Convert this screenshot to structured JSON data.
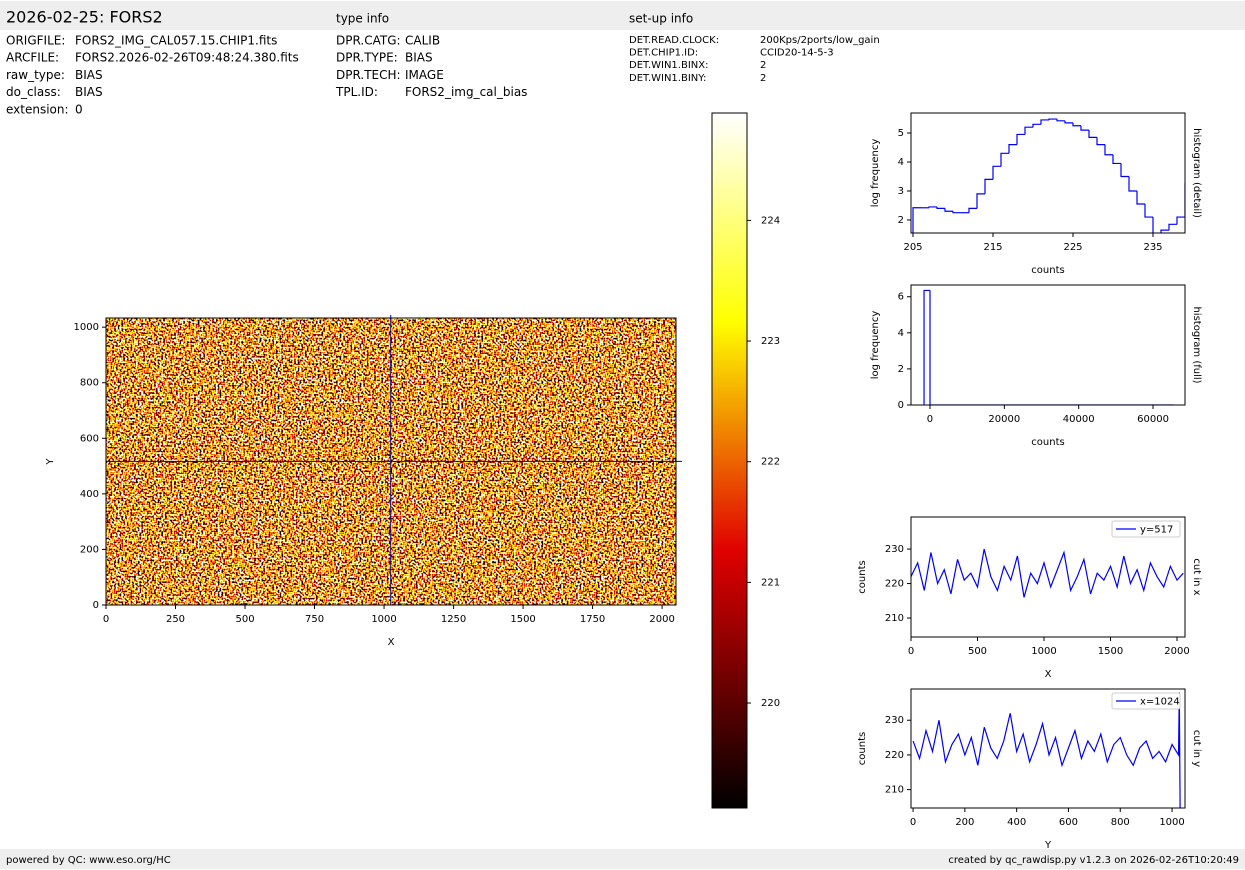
{
  "header": {
    "title": "2026-02-25: FORS2",
    "type_info": "type info",
    "setup_info": "set-up info"
  },
  "file_info": [
    [
      "ORIGFILE:",
      "FORS2_IMG_CAL057.15.CHIP1.fits"
    ],
    [
      "ARCFILE:",
      "FORS2.2026-02-26T09:48:24.380.fits"
    ],
    [
      "raw_type:",
      "BIAS"
    ],
    [
      "do_class:",
      "BIAS"
    ],
    [
      "extension:",
      "0"
    ]
  ],
  "type_info": [
    [
      "DPR.CATG:",
      "CALIB"
    ],
    [
      "DPR.TYPE:",
      "BIAS"
    ],
    [
      "DPR.TECH:",
      "IMAGE"
    ],
    [
      "TPL.ID:",
      "FORS2_img_cal_bias"
    ]
  ],
  "setup_info": [
    [
      "DET.READ.CLOCK:",
      "200Kps/2ports/low_gain"
    ],
    [
      "DET.CHIP1.ID:",
      "CCID20-14-5-3"
    ],
    [
      "DET.WIN1.BINX:",
      "2"
    ],
    [
      "DET.WIN1.BINY:",
      "2"
    ]
  ],
  "footer": {
    "left": "powered by QC: www.eso.org/HC",
    "right": "created by qc_rawdisp.py v1.2.3 on 2026-02-26T10:20:49"
  },
  "chart_data": [
    {
      "type": "image",
      "xlabel": "X",
      "ylabel": "Y",
      "xlim": [
        0,
        2050
      ],
      "ylim": [
        0,
        1033
      ],
      "xticks": [
        0,
        250,
        500,
        750,
        1000,
        1250,
        1500,
        1750,
        2000
      ],
      "yticks": [
        0,
        200,
        400,
        600,
        800,
        1000
      ],
      "crosshair": {
        "x": 1024,
        "y": 517
      },
      "crosshair_color": "#0000aa"
    },
    {
      "type": "colorbar",
      "clim": [
        219.13,
        224.89
      ],
      "ticks": [
        220,
        221,
        222,
        223,
        224
      ]
    },
    {
      "type": "histogram",
      "xlabel": "counts",
      "ylabel": "log frequency",
      "side_label": "histogram (detail)",
      "color": "#0000ff",
      "bins": [
        205,
        206,
        207,
        208,
        209,
        210,
        211,
        212,
        213,
        214,
        215,
        216,
        217,
        218,
        219,
        220,
        221,
        222,
        223,
        224,
        225,
        226,
        227,
        228,
        229,
        230,
        231,
        232,
        233,
        234,
        235,
        236,
        237,
        238,
        239,
        240
      ],
      "values": [
        2.42,
        2.42,
        2.45,
        2.4,
        2.3,
        2.25,
        2.25,
        2.4,
        2.9,
        3.4,
        3.85,
        4.3,
        4.6,
        4.95,
        5.2,
        5.3,
        5.45,
        5.48,
        5.42,
        5.35,
        5.25,
        5.1,
        4.85,
        4.6,
        4.25,
        3.95,
        3.5,
        3.0,
        2.55,
        2.1,
        1.5,
        1.65,
        1.85,
        2.1,
        3.25
      ],
      "xlim": [
        204.75,
        239.0
      ],
      "ylim": [
        1.55,
        5.69
      ],
      "xticks": [
        205,
        215,
        225,
        235
      ],
      "yticks": [
        2,
        3,
        4,
        5
      ]
    },
    {
      "type": "histogram",
      "xlabel": "counts",
      "ylabel": "log frequency",
      "side_label": "histogram (full)",
      "color": "#0000ff",
      "bins": [
        -1600,
        0,
        65536
      ],
      "values": [
        6.35,
        0
      ],
      "xlim": [
        -5110,
        68600
      ],
      "ylim": [
        0,
        6.65
      ],
      "xticks": [
        0,
        20000,
        40000,
        60000
      ],
      "yticks": [
        0,
        2,
        4,
        6
      ]
    },
    {
      "type": "line",
      "xlabel": "X",
      "ylabel": "counts",
      "side_label": "cut in x",
      "legend": "upper right",
      "xlim": [
        0,
        2060
      ],
      "ylim": [
        204.5,
        239.3
      ],
      "xticks": [
        0,
        500,
        1000,
        1500,
        2000
      ],
      "yticks": [
        210,
        220,
        230
      ],
      "series": [
        {
          "name": "y=517",
          "color": "#0000ff",
          "x": [
            0,
            50,
            100,
            150,
            200,
            250,
            300,
            350,
            400,
            450,
            500,
            550,
            600,
            650,
            700,
            750,
            800,
            850,
            900,
            950,
            1000,
            1050,
            1100,
            1150,
            1200,
            1250,
            1300,
            1350,
            1400,
            1450,
            1500,
            1550,
            1600,
            1650,
            1700,
            1750,
            1800,
            1850,
            1900,
            1950,
            2000,
            2047
          ],
          "values": [
            222,
            226,
            218,
            229,
            220,
            224,
            217,
            227,
            221,
            223,
            219,
            230,
            222,
            218,
            225,
            221,
            228,
            216,
            223,
            220,
            226,
            219,
            224,
            229,
            218,
            222,
            227,
            217,
            223,
            221,
            225,
            219,
            228,
            220,
            224,
            218,
            226,
            222,
            219,
            225,
            221,
            223
          ]
        }
      ]
    },
    {
      "type": "line",
      "xlabel": "Y",
      "ylabel": "counts",
      "side_label": "cut in y",
      "legend": "upper right",
      "xlim": [
        -8,
        1050
      ],
      "ylim": [
        204.7,
        239
      ],
      "xticks": [
        0,
        200,
        400,
        600,
        800,
        1000
      ],
      "yticks": [
        210,
        220,
        230
      ],
      "series": [
        {
          "name": "x=1024",
          "color": "#0000ff",
          "x": [
            0,
            25,
            50,
            75,
            100,
            125,
            150,
            175,
            200,
            225,
            250,
            275,
            300,
            325,
            350,
            375,
            400,
            425,
            450,
            475,
            500,
            525,
            550,
            575,
            600,
            625,
            650,
            675,
            700,
            725,
            750,
            775,
            800,
            825,
            850,
            875,
            900,
            925,
            950,
            975,
            1000,
            1025,
            1028,
            1032
          ],
          "values": [
            224,
            219,
            227,
            221,
            230,
            218,
            223,
            226,
            220,
            225,
            217,
            228,
            222,
            219,
            224,
            232,
            221,
            226,
            218,
            223,
            229,
            220,
            225,
            217,
            222,
            227,
            219,
            224,
            221,
            226,
            218,
            223,
            225,
            220,
            217,
            222,
            224,
            219,
            221,
            218,
            223,
            220,
            238,
            195
          ]
        }
      ]
    }
  ]
}
